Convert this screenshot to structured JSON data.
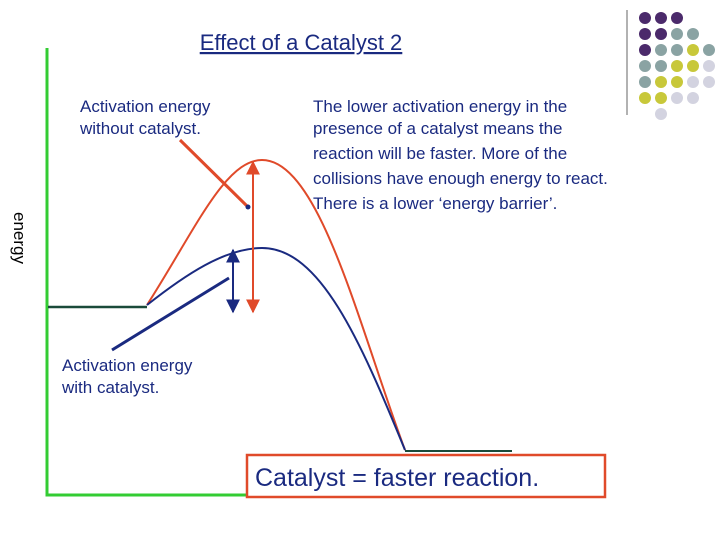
{
  "title": "Effect of a Catalyst 2",
  "axis_label": "energy",
  "label_without": [
    "Activation energy",
    "without catalyst."
  ],
  "label_with": [
    "Activation energy",
    "with catalyst."
  ],
  "explanation": [
    "The lower activation energy in the",
    "presence of a catalyst means the",
    "reaction will be faster. More of the",
    "collisions have enough energy to react.",
    "There is a lower ‘energy barrier’."
  ],
  "conclusion": "Catalyst = faster reaction."
}
